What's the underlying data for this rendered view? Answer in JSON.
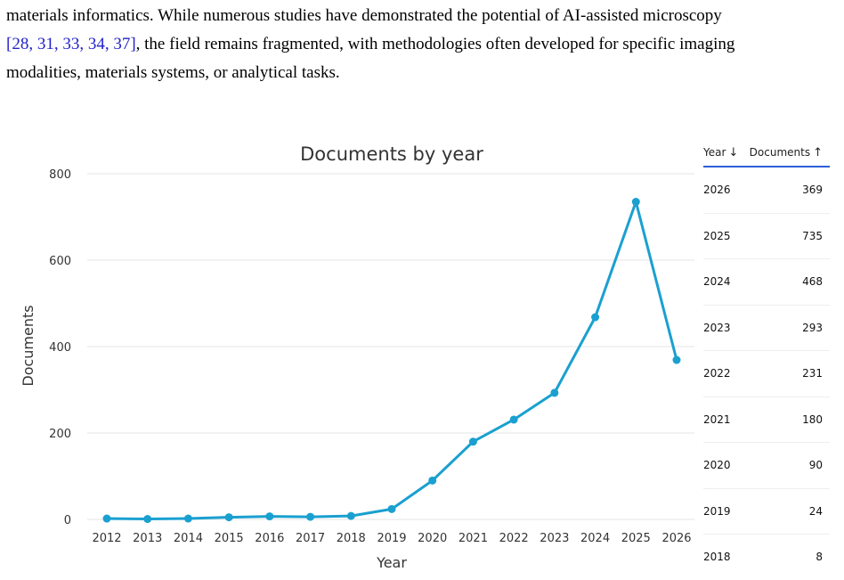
{
  "paragraph": {
    "line1": "materials informatics. While numerous studies have demonstrated the potential of AI-assisted microscopy",
    "citations": "[28, 31, 33, 34, 37]",
    "line2_rest": ", the field remains fragmented, with methodologies often developed for specific imaging",
    "line3": "modalities, materials systems, or analytical tasks."
  },
  "colors": {
    "line": "#1aa0d0",
    "citation": "#2222cc",
    "table_rule": "#2c5fd6",
    "grid": "#e6e6e6"
  },
  "chart_data": {
    "type": "line",
    "title": "Documents by year",
    "xlabel": "Year",
    "ylabel": "Documents",
    "ylim": [
      0,
      800
    ],
    "yticks": [
      0,
      200,
      400,
      600,
      800
    ],
    "grid": true,
    "series": [
      {
        "x": [
          "2012",
          "2013",
          "2014",
          "2015",
          "2016",
          "2017",
          "2018",
          "2019",
          "2020",
          "2021",
          "2022",
          "2023",
          "2024",
          "2025",
          "2026"
        ],
        "values": [
          2,
          1,
          2,
          5,
          7,
          6,
          8,
          24,
          90,
          180,
          231,
          293,
          468,
          735,
          369
        ]
      }
    ]
  },
  "table": {
    "header_year": "Year",
    "header_year_icon": "arrow-down-icon",
    "header_docs": "Documents",
    "header_docs_icon": "arrow-up-icon",
    "rows": [
      {
        "year": "2026",
        "docs": "369"
      },
      {
        "year": "2025",
        "docs": "735"
      },
      {
        "year": "2024",
        "docs": "468"
      },
      {
        "year": "2023",
        "docs": "293"
      },
      {
        "year": "2022",
        "docs": "231"
      },
      {
        "year": "2021",
        "docs": "180"
      },
      {
        "year": "2020",
        "docs": "90"
      },
      {
        "year": "2019",
        "docs": "24"
      },
      {
        "year": "2018",
        "docs": "8"
      }
    ]
  }
}
